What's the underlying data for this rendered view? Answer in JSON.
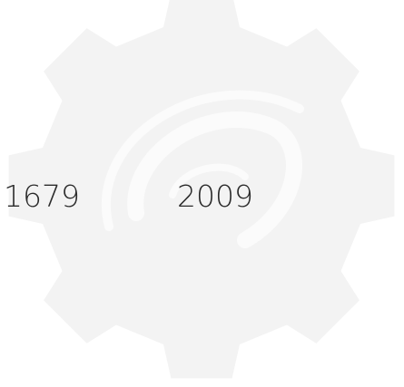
{
  "labels": [
    "1679",
    "2009"
  ]
}
